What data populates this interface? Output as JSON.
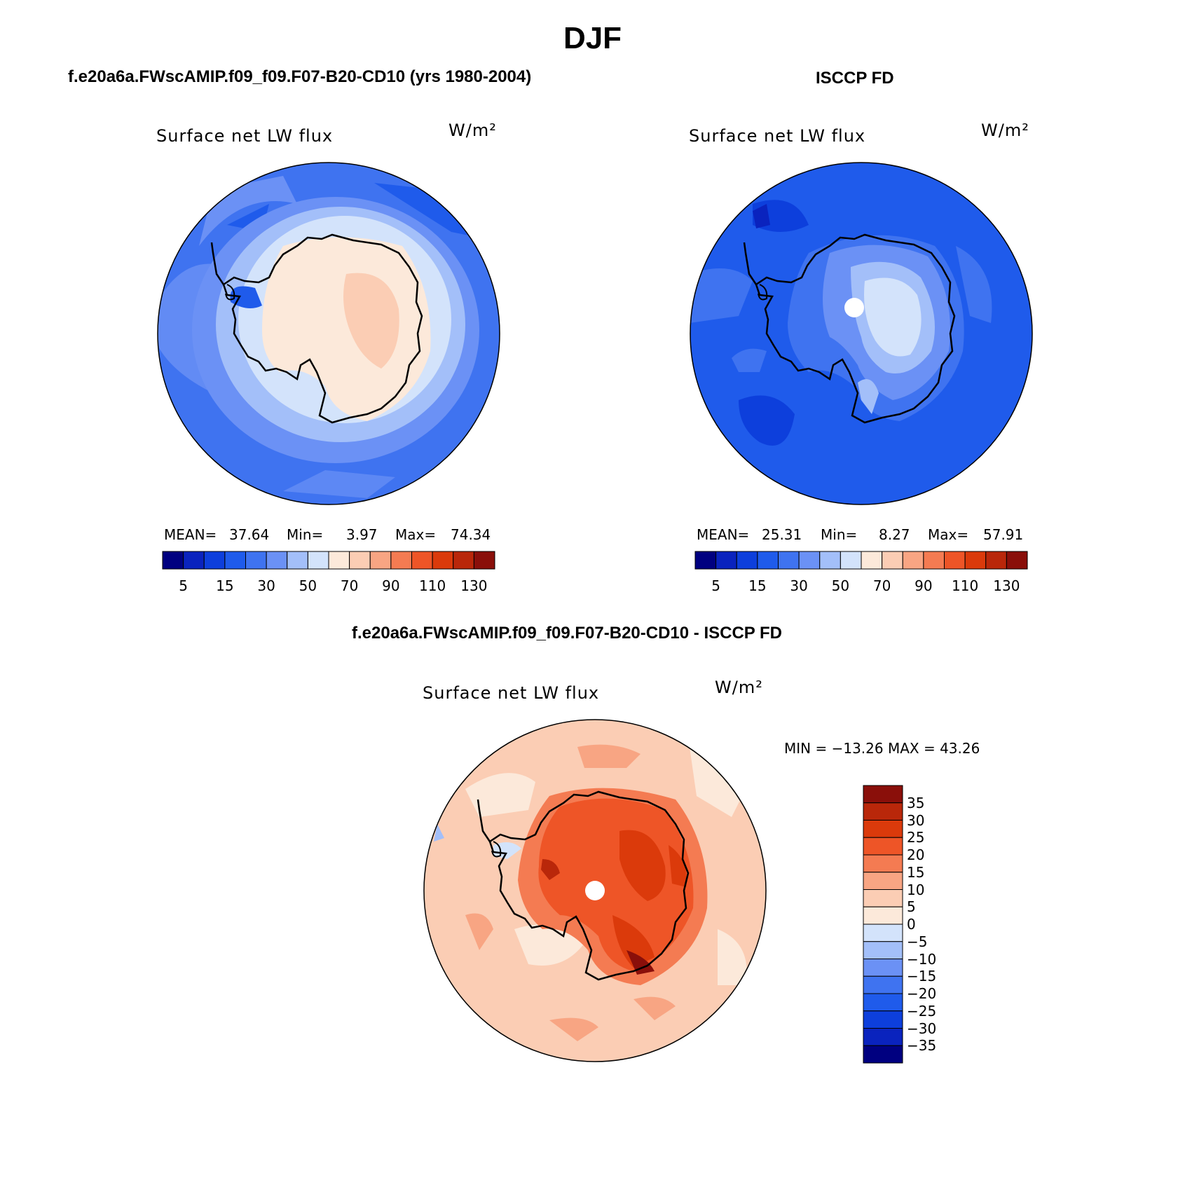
{
  "figure": {
    "title": "DJF"
  },
  "panels": {
    "model": {
      "title": "f.e20a6a.FWscAMIP.f09_f09.F07-B20-CD10 (yrs 1980-2004)",
      "variable": "Surface net LW flux",
      "units": "W/m²",
      "mean_label": "MEAN=",
      "mean": "37.64",
      "min_label": "Min=",
      "min": "3.97",
      "max_label": "Max=",
      "max": "74.34"
    },
    "obs": {
      "title": "ISCCP FD",
      "variable": "Surface net LW flux",
      "units": "W/m²",
      "mean_label": "MEAN=",
      "mean": "25.31",
      "min_label": "Min=",
      "min": "8.27",
      "max_label": "Max=",
      "max": "57.91"
    },
    "diff": {
      "title": "f.e20a6a.FWscAMIP.f09_f09.F07-B20-CD10 - ISCCP FD",
      "variable": "Surface net LW flux",
      "units": "W/m²",
      "minmax_text": "MIN = −13.26 MAX =   43.26"
    }
  },
  "chart_data": [
    {
      "type": "heatmap",
      "projection": "south-polar-stereographic",
      "title": "Surface net LW flux",
      "units": "W/m²",
      "stats": {
        "mean": 37.64,
        "min": 3.97,
        "max": 74.34
      },
      "levels": [
        5,
        10,
        15,
        20,
        30,
        40,
        50,
        60,
        70,
        80,
        90,
        100,
        110,
        120,
        130
      ],
      "colorbar_tick_labels": [
        "5",
        "15",
        "30",
        "50",
        "70",
        "90",
        "110",
        "130"
      ],
      "colors": [
        "#000080",
        "#0A23BE",
        "#0D3FDC",
        "#1F5BEB",
        "#3F73F0",
        "#6B91F5",
        "#A3BFF9",
        "#D3E3FB",
        "#FCE9DA",
        "#FBCDB4",
        "#F8A583",
        "#F47B52",
        "#EE5527",
        "#DB3A0B",
        "#B9270A",
        "#8A0F0A"
      ],
      "description_regions": {
        "antarctic_interior": "70-90",
        "coastal_ice": "50-70",
        "southern_ocean": "30-40"
      }
    },
    {
      "type": "heatmap",
      "projection": "south-polar-stereographic",
      "title": "Surface net LW flux",
      "units": "W/m²",
      "stats": {
        "mean": 25.31,
        "min": 8.27,
        "max": 57.91
      },
      "levels": [
        5,
        10,
        15,
        20,
        30,
        40,
        50,
        60,
        70,
        80,
        90,
        100,
        110,
        120,
        130
      ],
      "colorbar_tick_labels": [
        "5",
        "15",
        "30",
        "50",
        "70",
        "90",
        "110",
        "130"
      ],
      "colors": [
        "#000080",
        "#0A23BE",
        "#0D3FDC",
        "#1F5BEB",
        "#3F73F0",
        "#6B91F5",
        "#A3BFF9",
        "#D3E3FB",
        "#FCE9DA",
        "#FBCDB4",
        "#F8A583",
        "#F47B52",
        "#EE5527",
        "#DB3A0B",
        "#B9270A",
        "#8A0F0A"
      ],
      "description_regions": {
        "antarctic_interior": "50-60",
        "coastal_ice": "40-50",
        "southern_ocean": "20-30"
      }
    },
    {
      "type": "heatmap",
      "projection": "south-polar-stereographic",
      "title": "Surface net LW flux",
      "units": "W/m²",
      "stats": {
        "min": -13.26,
        "max": 43.26
      },
      "levels": [
        -35,
        -30,
        -25,
        -20,
        -15,
        -10,
        -5,
        0,
        5,
        10,
        15,
        20,
        25,
        30,
        35
      ],
      "colorbar_tick_labels": [
        "35",
        "30",
        "25",
        "20",
        "15",
        "10",
        "5",
        "0",
        "−5",
        "−10",
        "−15",
        "−20",
        "−25",
        "−30",
        "−35"
      ],
      "colors": [
        "#8A0F0A",
        "#B9270A",
        "#DB3A0B",
        "#EE5527",
        "#F47B52",
        "#F8A583",
        "#FBCDB4",
        "#FCE9DA",
        "#D3E3FB",
        "#A3BFF9",
        "#6B91F5",
        "#3F73F0",
        "#1F5BEB",
        "#0D3FDC",
        "#0A23BE",
        "#000080"
      ]
    }
  ]
}
